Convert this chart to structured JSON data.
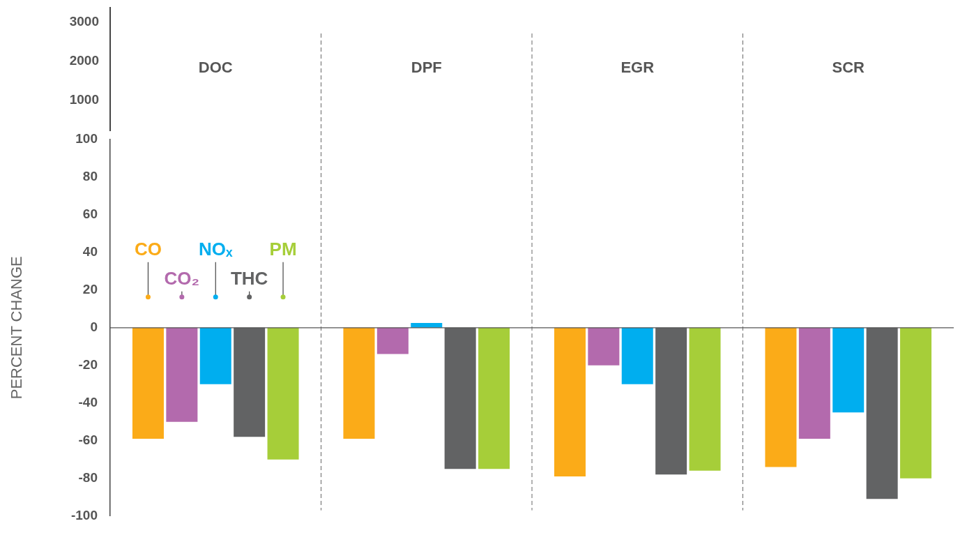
{
  "chart_data": [
    {
      "type": "other",
      "annotations": [
        "3000",
        "2000",
        "1000"
      ]
    },
    {
      "type": "bar",
      "ylabel": "PERCENT CHANGE",
      "categories": [
        "DOC",
        "DPF",
        "EGR",
        "SCR"
      ],
      "series": [
        {
          "name": "CO",
          "color": "#fbab18",
          "values": [
            -59,
            -59,
            -79,
            -74
          ]
        },
        {
          "name": "CO₂",
          "color": "#b36aad",
          "values": [
            -50,
            -14,
            -20,
            -59
          ]
        },
        {
          "name": "NOₓ",
          "color": "#00aeef",
          "values": [
            -30,
            2.5,
            -30,
            -45
          ]
        },
        {
          "name": "THC",
          "color": "#626364",
          "values": [
            -58,
            -75,
            -78,
            -91
          ]
        },
        {
          "name": "PM",
          "color": "#a6ce39",
          "values": [
            -70,
            -75,
            -76,
            -80
          ]
        }
      ],
      "ylim": [
        -100,
        100
      ],
      "yticks": [
        -100,
        -80,
        -60,
        -40,
        -20,
        0,
        20,
        40,
        60,
        80,
        100
      ],
      "grid": false,
      "legend": "left"
    }
  ]
}
